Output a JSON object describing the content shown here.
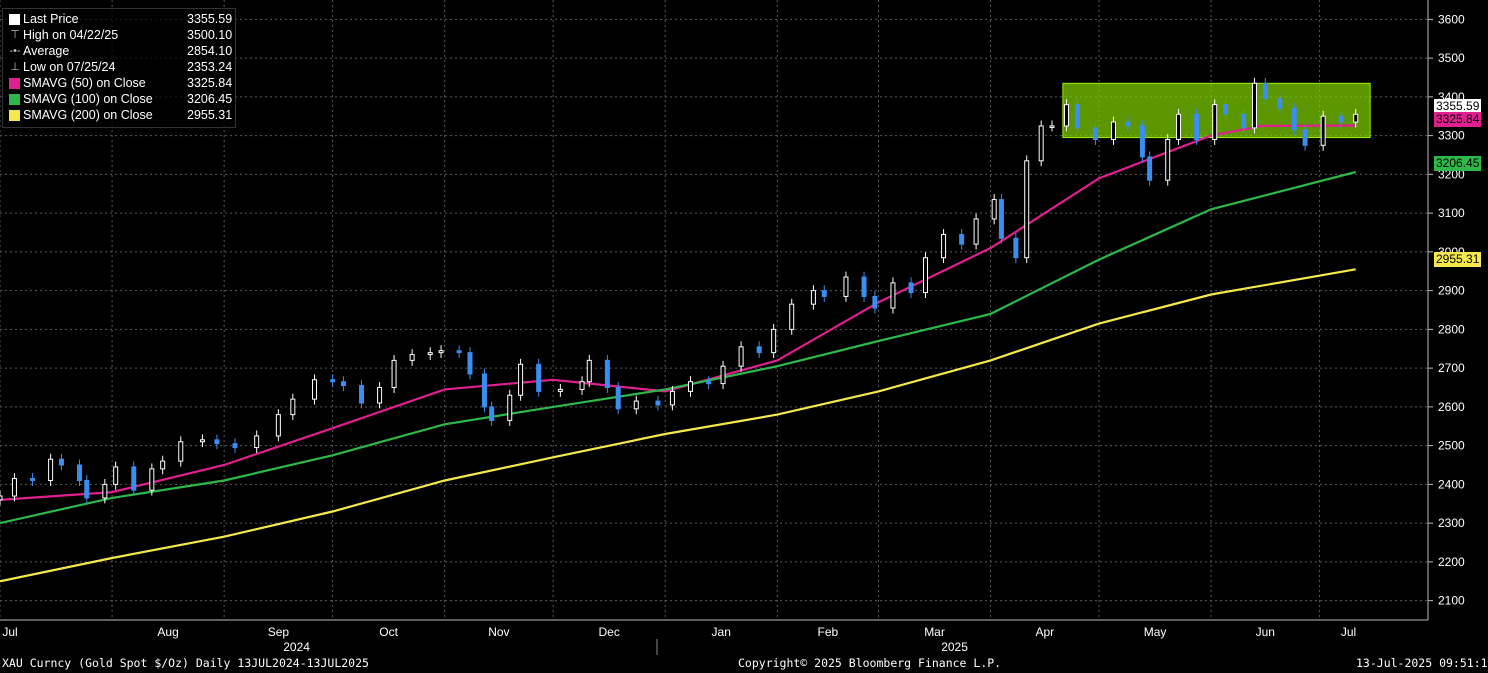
{
  "legend": {
    "rows": [
      {
        "label": "Last Price",
        "value": "3355.59",
        "color": "#ffffff",
        "icon": "square-icon"
      },
      {
        "label": "High on 04/22/25",
        "value": "3500.10",
        "color": "#bbbbbb",
        "icon": "high-marker-icon"
      },
      {
        "label": "Average",
        "value": "2854.10",
        "color": "#bbbbbb",
        "icon": "average-marker-icon"
      },
      {
        "label": "Low on 07/25/24",
        "value": "2353.24",
        "color": "#bbbbbb",
        "icon": "low-marker-icon"
      },
      {
        "label": "SMAVG (50)  on Close",
        "value": "3325.84",
        "color": "#e0208f",
        "icon": "square-icon"
      },
      {
        "label": "SMAVG (100)  on Close",
        "value": "3206.45",
        "color": "#2eb84a",
        "icon": "square-icon"
      },
      {
        "label": "SMAVG (200)  on Close",
        "value": "2955.31",
        "color": "#f5e84a",
        "icon": "square-icon"
      }
    ]
  },
  "price_tags": [
    {
      "value": "3355.59",
      "bg": "#ffffff",
      "fg": "#000000"
    },
    {
      "value": "3325.84",
      "bg": "#e0208f",
      "fg": "#000000"
    },
    {
      "value": "3206.45",
      "bg": "#2eb84a",
      "fg": "#000000"
    },
    {
      "value": "2955.31",
      "bg": "#f5e84a",
      "fg": "#000000"
    }
  ],
  "footer": {
    "left": "XAU Curncy (Gold Spot  $/Oz)  Daily 13JUL2024-13JUL2025",
    "center": "Copyright© 2025 Bloomberg Finance L.P.",
    "right": "13-Jul-2025 09:51:15"
  },
  "colors": {
    "background": "#000000",
    "grid": "#5a5a5a",
    "candle_up": "#ffffff",
    "candle_down": "#3a8ef0",
    "sma50": "#e0208f",
    "sma100": "#2eb84a",
    "sma200": "#f5e84a",
    "range_box": "#7fd000"
  },
  "chart_data": {
    "type": "line",
    "title": "",
    "xlabel": "",
    "ylabel": "",
    "ylim": [
      2050,
      3650
    ],
    "yticks": [
      2100,
      2200,
      2300,
      2400,
      2500,
      2600,
      2700,
      2800,
      2900,
      3000,
      3100,
      3200,
      3300,
      3400,
      3500,
      3600
    ],
    "xlim": [
      "2024-07-01",
      "2025-07-31"
    ],
    "x_months": [
      {
        "label": "Jul",
        "date": "2024-07-01"
      },
      {
        "label": "Aug",
        "date": "2024-08-01"
      },
      {
        "label": "Sep",
        "date": "2024-09-01"
      },
      {
        "label": "Oct",
        "date": "2024-10-01"
      },
      {
        "label": "Nov",
        "date": "2024-11-01"
      },
      {
        "label": "Dec",
        "date": "2024-12-01"
      },
      {
        "label": "Jan",
        "date": "2025-01-01"
      },
      {
        "label": "Feb",
        "date": "2025-02-01"
      },
      {
        "label": "Mar",
        "date": "2025-03-01"
      },
      {
        "label": "Apr",
        "date": "2025-04-01"
      },
      {
        "label": "May",
        "date": "2025-05-01"
      },
      {
        "label": "Jun",
        "date": "2025-06-01"
      },
      {
        "label": "Jul",
        "date": "2025-07-01"
      }
    ],
    "x_years": [
      {
        "label": "2024",
        "date": "2024-10-01"
      },
      {
        "label": "2025",
        "date": "2025-04-01"
      }
    ],
    "series": [
      {
        "name": "Last Price",
        "kind": "candlestick",
        "points": [
          [
            "2024-07-01",
            2370
          ],
          [
            "2024-07-05",
            2415
          ],
          [
            "2024-07-10",
            2410
          ],
          [
            "2024-07-15",
            2465
          ],
          [
            "2024-07-18",
            2450
          ],
          [
            "2024-07-23",
            2410
          ],
          [
            "2024-07-25",
            2365
          ],
          [
            "2024-07-30",
            2400
          ],
          [
            "2024-08-02",
            2445
          ],
          [
            "2024-08-07",
            2385
          ],
          [
            "2024-08-12",
            2440
          ],
          [
            "2024-08-15",
            2460
          ],
          [
            "2024-08-20",
            2510
          ],
          [
            "2024-08-26",
            2515
          ],
          [
            "2024-08-30",
            2505
          ],
          [
            "2024-09-04",
            2495
          ],
          [
            "2024-09-10",
            2525
          ],
          [
            "2024-09-16",
            2580
          ],
          [
            "2024-09-20",
            2620
          ],
          [
            "2024-09-26",
            2670
          ],
          [
            "2024-10-01",
            2665
          ],
          [
            "2024-10-04",
            2655
          ],
          [
            "2024-10-09",
            2610
          ],
          [
            "2024-10-14",
            2650
          ],
          [
            "2024-10-18",
            2720
          ],
          [
            "2024-10-23",
            2735
          ],
          [
            "2024-10-28",
            2740
          ],
          [
            "2024-10-31",
            2745
          ],
          [
            "2024-11-05",
            2740
          ],
          [
            "2024-11-08",
            2685
          ],
          [
            "2024-11-12",
            2600
          ],
          [
            "2024-11-14",
            2565
          ],
          [
            "2024-11-19",
            2630
          ],
          [
            "2024-11-22",
            2710
          ],
          [
            "2024-11-27",
            2640
          ],
          [
            "2024-12-03",
            2645
          ],
          [
            "2024-12-09",
            2665
          ],
          [
            "2024-12-11",
            2720
          ],
          [
            "2024-12-16",
            2650
          ],
          [
            "2024-12-19",
            2595
          ],
          [
            "2024-12-24",
            2615
          ],
          [
            "2024-12-30",
            2605
          ],
          [
            "2025-01-03",
            2640
          ],
          [
            "2025-01-08",
            2665
          ],
          [
            "2025-01-13",
            2660
          ],
          [
            "2025-01-17",
            2705
          ],
          [
            "2025-01-22",
            2755
          ],
          [
            "2025-01-27",
            2740
          ],
          [
            "2025-01-31",
            2800
          ],
          [
            "2025-02-05",
            2865
          ],
          [
            "2025-02-11",
            2900
          ],
          [
            "2025-02-14",
            2885
          ],
          [
            "2025-02-20",
            2935
          ],
          [
            "2025-02-25",
            2885
          ],
          [
            "2025-02-28",
            2855
          ],
          [
            "2025-03-05",
            2920
          ],
          [
            "2025-03-10",
            2895
          ],
          [
            "2025-03-14",
            2985
          ],
          [
            "2025-03-19",
            3045
          ],
          [
            "2025-03-24",
            3020
          ],
          [
            "2025-03-28",
            3085
          ],
          [
            "2025-04-02",
            3135
          ],
          [
            "2025-04-04",
            3035
          ],
          [
            "2025-04-08",
            2985
          ],
          [
            "2025-04-11",
            3235
          ],
          [
            "2025-04-15",
            3325
          ],
          [
            "2025-04-18",
            3325
          ],
          [
            "2025-04-22",
            3380
          ],
          [
            "2025-04-25",
            3320
          ],
          [
            "2025-04-30",
            3290
          ],
          [
            "2025-05-05",
            3335
          ],
          [
            "2025-05-09",
            3325
          ],
          [
            "2025-05-13",
            3245
          ],
          [
            "2025-05-15",
            3185
          ],
          [
            "2025-05-20",
            3290
          ],
          [
            "2025-05-23",
            3355
          ],
          [
            "2025-05-28",
            3290
          ],
          [
            "2025-06-02",
            3380
          ],
          [
            "2025-06-05",
            3355
          ],
          [
            "2025-06-10",
            3320
          ],
          [
            "2025-06-13",
            3435
          ],
          [
            "2025-06-16",
            3395
          ],
          [
            "2025-06-20",
            3370
          ],
          [
            "2025-06-24",
            3315
          ],
          [
            "2025-06-27",
            3275
          ],
          [
            "2025-07-02",
            3350
          ],
          [
            "2025-07-07",
            3335
          ],
          [
            "2025-07-11",
            3355
          ]
        ]
      },
      {
        "name": "SMAVG (50)  on Close",
        "points": [
          [
            "2024-07-01",
            2360
          ],
          [
            "2024-08-01",
            2380
          ],
          [
            "2024-09-01",
            2450
          ],
          [
            "2024-10-01",
            2545
          ],
          [
            "2024-11-01",
            2645
          ],
          [
            "2024-12-01",
            2670
          ],
          [
            "2025-01-01",
            2640
          ],
          [
            "2025-02-01",
            2720
          ],
          [
            "2025-03-01",
            2870
          ],
          [
            "2025-04-01",
            3010
          ],
          [
            "2025-05-01",
            3190
          ],
          [
            "2025-06-01",
            3300
          ],
          [
            "2025-06-15",
            3325
          ],
          [
            "2025-07-11",
            3326
          ]
        ]
      },
      {
        "name": "SMAVG (100)  on Close",
        "points": [
          [
            "2024-07-01",
            2300
          ],
          [
            "2024-08-01",
            2365
          ],
          [
            "2024-09-01",
            2410
          ],
          [
            "2024-10-01",
            2475
          ],
          [
            "2024-11-01",
            2555
          ],
          [
            "2024-12-01",
            2600
          ],
          [
            "2025-01-01",
            2645
          ],
          [
            "2025-02-01",
            2705
          ],
          [
            "2025-03-01",
            2770
          ],
          [
            "2025-04-01",
            2840
          ],
          [
            "2025-05-01",
            2980
          ],
          [
            "2025-06-01",
            3110
          ],
          [
            "2025-07-11",
            3206
          ]
        ]
      },
      {
        "name": "SMAVG (200)  on Close",
        "points": [
          [
            "2024-07-01",
            2150
          ],
          [
            "2024-08-01",
            2210
          ],
          [
            "2024-09-01",
            2265
          ],
          [
            "2024-10-01",
            2330
          ],
          [
            "2024-11-01",
            2410
          ],
          [
            "2024-12-01",
            2470
          ],
          [
            "2025-01-01",
            2530
          ],
          [
            "2025-02-01",
            2580
          ],
          [
            "2025-03-01",
            2640
          ],
          [
            "2025-04-01",
            2720
          ],
          [
            "2025-05-01",
            2815
          ],
          [
            "2025-06-01",
            2890
          ],
          [
            "2025-07-11",
            2955
          ]
        ]
      }
    ],
    "range_box": {
      "x0": "2025-04-21",
      "x1": "2025-07-15",
      "y0": 3295,
      "y1": 3435
    },
    "grid": true,
    "legend_position": "top-left"
  }
}
